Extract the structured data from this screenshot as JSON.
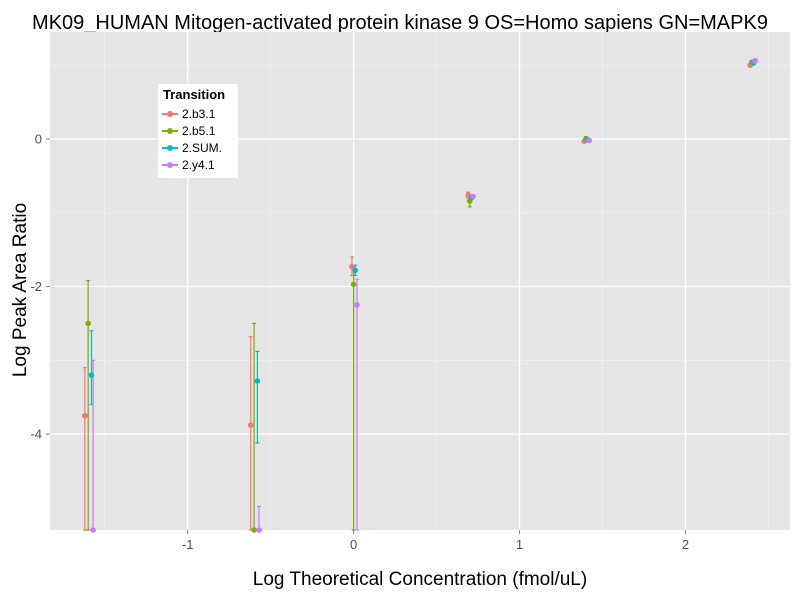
{
  "chart_data": {
    "type": "scatter",
    "title": "MK09_HUMAN Mitogen-activated protein kinase 9 OS=Homo sapiens GN=MAPK9",
    "xlabel": "Log Theoretical Concentration (fmol/uL)",
    "ylabel": "Log Peak Area Ratio",
    "xlim": [
      -1.83,
      2.63
    ],
    "ylim": [
      -5.3,
      1.45
    ],
    "x_ticks": [
      -1,
      0,
      1,
      2
    ],
    "x_tick_labels": [
      "-1",
      "0",
      "1",
      "2"
    ],
    "y_ticks": [
      -4,
      -2,
      0
    ],
    "y_tick_labels": [
      "-4",
      "-2",
      "0"
    ],
    "grid": true,
    "legend": {
      "title": "Transition",
      "position": "top-left inside"
    },
    "series": [
      {
        "name": "2.b3.1",
        "color": "#F8766D",
        "points": [
          {
            "x": -1.62,
            "y": -3.75,
            "lo": -5.3,
            "hi": -3.1
          },
          {
            "x": -0.62,
            "y": -3.88,
            "lo": -5.3,
            "hi": -2.68
          },
          {
            "x": -0.01,
            "y": -1.73,
            "lo": -1.85,
            "hi": -1.6
          },
          {
            "x": 0.69,
            "y": -0.76,
            "lo": -0.8,
            "hi": -0.72
          },
          {
            "x": 1.39,
            "y": -0.03,
            "lo": -0.05,
            "hi": -0.01
          },
          {
            "x": 2.39,
            "y": 1.0,
            "lo": 0.98,
            "hi": 1.02
          }
        ]
      },
      {
        "name": "2.b5.1",
        "color": "#7CAE00",
        "points": [
          {
            "x": -1.6,
            "y": -2.5,
            "lo": -5.3,
            "hi": -1.92
          },
          {
            "x": -0.6,
            "y": -5.3,
            "lo": -5.3,
            "hi": -2.5
          },
          {
            "x": 0.0,
            "y": -1.97,
            "lo": -5.3,
            "hi": -1.73
          },
          {
            "x": 0.7,
            "y": -0.84,
            "lo": -0.92,
            "hi": -0.76
          },
          {
            "x": 1.4,
            "y": 0.0,
            "lo": -0.03,
            "hi": 0.03
          },
          {
            "x": 2.4,
            "y": 1.04,
            "lo": 1.02,
            "hi": 1.06
          }
        ]
      },
      {
        "name": "2.SUM.",
        "color": "#00BFC4",
        "points": [
          {
            "x": -1.58,
            "y": -3.2,
            "lo": -3.6,
            "hi": -2.6
          },
          {
            "x": -0.58,
            "y": -3.28,
            "lo": -4.12,
            "hi": -2.88
          },
          {
            "x": 0.01,
            "y": -1.78,
            "lo": -1.85,
            "hi": -1.71
          },
          {
            "x": 0.71,
            "y": -0.79,
            "lo": -0.82,
            "hi": -0.76
          },
          {
            "x": 1.41,
            "y": -0.01,
            "lo": -0.03,
            "hi": 0.01
          },
          {
            "x": 2.41,
            "y": 1.03,
            "lo": 1.01,
            "hi": 1.05
          }
        ]
      },
      {
        "name": "2.y4.1",
        "color": "#C77CFF",
        "points": [
          {
            "x": -1.57,
            "y": -5.3,
            "lo": -5.3,
            "hi": -3.0
          },
          {
            "x": -0.57,
            "y": -5.3,
            "lo": -5.3,
            "hi": -4.98
          },
          {
            "x": 0.02,
            "y": -2.25,
            "lo": -5.3,
            "hi": -1.9
          },
          {
            "x": 0.72,
            "y": -0.78,
            "lo": -0.8,
            "hi": -0.76
          },
          {
            "x": 1.42,
            "y": -0.02,
            "lo": -0.04,
            "hi": 0.0
          },
          {
            "x": 2.42,
            "y": 1.06,
            "lo": 1.04,
            "hi": 1.08
          }
        ]
      }
    ]
  }
}
